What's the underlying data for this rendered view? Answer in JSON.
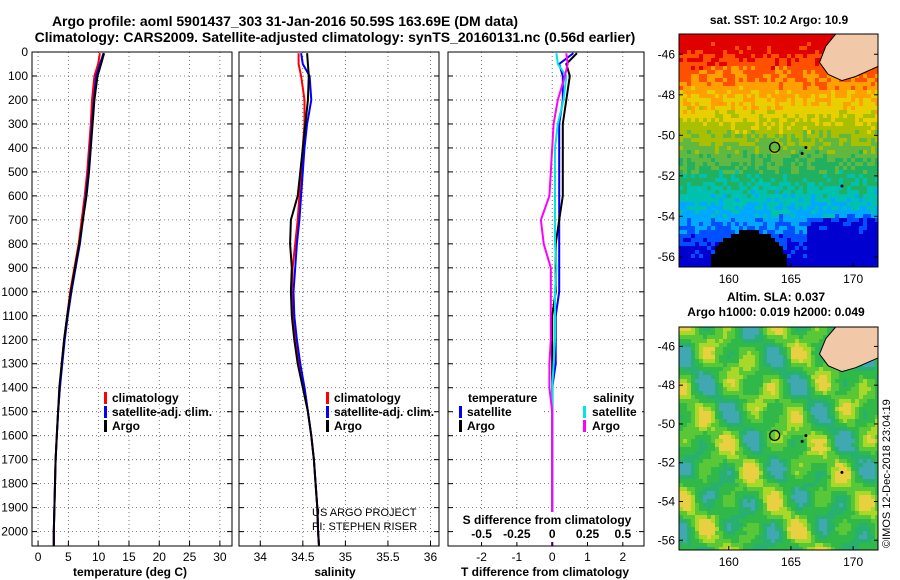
{
  "header": {
    "title_line1": "Argo profile: aoml 5901437_303 31-Jan-2016 50.59S 163.69E (DM data)",
    "title_line2": "Climatology: CARS2009. Satellite-adjusted climatology: synTS_20160131.nc (0.56d earlier)"
  },
  "credits": {
    "project": "US ARGO PROJECT",
    "pi": "PI: STEPHEN RISER",
    "imos": "©IMOS 12-Dec-2018 23:04:19"
  },
  "colors": {
    "climatology": "#ff0000",
    "satellite": "#0000ff",
    "argo": "#000000",
    "salinity_satellite": "#00e5e5",
    "salinity_climatology": "#ff00ff",
    "land": "#f2c9a8"
  },
  "chart_data": [
    {
      "type": "line",
      "id": "temperature",
      "xlabel": "temperature (deg C)",
      "ylabel": "",
      "xlim": [
        -1,
        32
      ],
      "ylim": [
        2060,
        0
      ],
      "xticks": [
        0,
        5,
        10,
        15,
        20,
        25,
        30
      ],
      "yticks": [
        0,
        100,
        200,
        300,
        400,
        500,
        600,
        700,
        800,
        900,
        1000,
        1100,
        1200,
        1300,
        1400,
        1500,
        1600,
        1700,
        1800,
        1900,
        2000
      ],
      "grid": true,
      "legend": [
        "climatology",
        "satellite-adj. clim.",
        "Argo"
      ],
      "y": [
        5,
        50,
        100,
        200,
        300,
        400,
        500,
        600,
        700,
        800,
        900,
        1000,
        1100,
        1200,
        1300,
        1400,
        1500,
        1600,
        1700,
        1800,
        1900,
        2000,
        2060
      ],
      "series": [
        {
          "name": "climatology",
          "values": [
            10.2,
            9.9,
            9.3,
            8.9,
            8.7,
            8.4,
            8.1,
            7.7,
            7.2,
            6.7,
            6.0,
            5.3,
            4.8,
            4.3,
            3.9,
            3.6,
            3.3,
            3.1,
            2.9,
            2.8,
            2.7,
            2.6,
            2.6
          ]
        },
        {
          "name": "satellite-adj. clim.",
          "values": [
            10.8,
            10.2,
            9.6,
            9.2,
            8.9,
            8.6,
            8.3,
            7.9,
            7.4,
            6.9,
            6.2,
            5.5,
            4.9,
            4.4,
            4.0,
            3.6,
            3.3,
            3.1,
            2.9,
            2.8,
            2.7,
            2.6,
            2.6
          ]
        },
        {
          "name": "Argo",
          "values": [
            10.9,
            10.4,
            9.8,
            9.3,
            9.0,
            8.7,
            8.4,
            8.0,
            7.4,
            6.8,
            6.1,
            5.4,
            4.8,
            4.3,
            3.9,
            3.5,
            3.3,
            3.1,
            2.9,
            2.8,
            2.7,
            2.6,
            2.6
          ]
        }
      ]
    },
    {
      "type": "line",
      "id": "salinity",
      "xlabel": "salinity",
      "ylabel": "",
      "xlim": [
        33.75,
        36.1
      ],
      "ylim": [
        2060,
        0
      ],
      "xticks": [
        34,
        34.5,
        35,
        35.5,
        36
      ],
      "grid": true,
      "legend": [
        "climatology",
        "satellite-adj. clim.",
        "Argo"
      ],
      "y": [
        5,
        50,
        100,
        200,
        300,
        400,
        500,
        600,
        700,
        800,
        900,
        1000,
        1100,
        1200,
        1300,
        1400,
        1500,
        1600,
        1700,
        1800,
        1900,
        2000,
        2060
      ],
      "series": [
        {
          "name": "climatology",
          "values": [
            34.45,
            34.45,
            34.48,
            34.52,
            34.52,
            34.5,
            34.48,
            34.46,
            34.44,
            34.41,
            34.38,
            34.37,
            34.38,
            34.41,
            34.46,
            34.52,
            34.56,
            34.6,
            34.63,
            34.65,
            34.67,
            34.68,
            34.69
          ]
        },
        {
          "name": "satellite-adj. clim.",
          "values": [
            34.48,
            34.5,
            34.58,
            34.6,
            34.55,
            34.52,
            34.5,
            34.48,
            34.46,
            34.43,
            34.41,
            34.39,
            34.4,
            34.43,
            34.47,
            34.52,
            34.56,
            34.6,
            34.63,
            34.65,
            34.67,
            34.68,
            34.69
          ]
        },
        {
          "name": "Argo",
          "values": [
            34.55,
            34.56,
            34.57,
            34.56,
            34.53,
            34.5,
            34.47,
            34.44,
            34.36,
            34.35,
            34.37,
            34.36,
            34.37,
            34.4,
            34.44,
            34.5,
            34.56,
            34.6,
            34.63,
            34.65,
            34.67,
            34.68,
            34.69
          ]
        }
      ]
    },
    {
      "type": "line",
      "id": "difference",
      "xlabel": "T difference from climatology",
      "xlabel_top": "S difference from climatology",
      "xlim": [
        -2.95,
        2.6
      ],
      "ylim": [
        2060,
        0
      ],
      "xticks": [
        -2,
        -1,
        0,
        1,
        2
      ],
      "xticklabels_salinity": [
        "-0.5",
        "-0.25",
        "0",
        "0.25",
        "0.5"
      ],
      "grid": true,
      "legend_temperature_title": "temperature",
      "legend_salinity_title": "salinity",
      "legend_temperature": [
        "satellite",
        "Argo"
      ],
      "legend_salinity": [
        "satellite",
        "Argo"
      ],
      "y": [
        5,
        50,
        100,
        200,
        300,
        400,
        500,
        600,
        700,
        800,
        900,
        1000,
        1100,
        1200,
        1300,
        1400,
        1500,
        1600,
        1700,
        1800,
        1900,
        2000,
        2060
      ],
      "series": [
        {
          "name": "temperature satellite",
          "values": [
            0.6,
            0.2,
            0.3,
            0.3,
            0.2,
            0.2,
            0.2,
            0.2,
            0.2,
            0.2,
            0.2,
            0.2,
            0.1,
            0.1,
            0.1,
            0.0,
            0.0,
            0.0,
            0.0,
            0.0,
            0.0,
            0.0,
            0.0
          ]
        },
        {
          "name": "temperature Argo",
          "values": [
            0.7,
            0.4,
            0.5,
            0.4,
            0.3,
            0.3,
            0.3,
            0.3,
            0.2,
            0.1,
            0.1,
            0.1,
            0.0,
            0.0,
            0.0,
            0.0,
            0.0,
            0.0,
            0.0,
            0.0,
            0.0,
            0.0,
            0.0
          ]
        },
        {
          "name": "salinity satellite",
          "values": [
            0.03,
            0.04,
            0.1,
            0.08,
            0.04,
            0.02,
            0.02,
            0.02,
            0.02,
            0.02,
            0.03,
            0.02,
            0.02,
            0.02,
            0.01,
            0.0,
            0.0,
            0.0,
            0.0,
            0.0,
            0.0,
            0.0,
            0.0
          ]
        },
        {
          "name": "salinity Argo",
          "values": [
            0.1,
            0.11,
            0.09,
            0.04,
            0.01,
            0.0,
            -0.01,
            -0.02,
            -0.08,
            -0.06,
            -0.01,
            -0.01,
            -0.01,
            -0.01,
            -0.02,
            -0.02,
            0.0,
            0.0,
            0.0,
            0.0,
            0.0,
            0.0,
            0.0
          ]
        }
      ]
    },
    {
      "type": "heatmap",
      "id": "sst-map",
      "title": "sat. SST: 10.2 Argo: 10.9",
      "xlim": [
        156,
        172
      ],
      "ylim": [
        -56.5,
        -45
      ],
      "xticks": [
        160,
        165,
        170
      ],
      "yticks": [
        -46,
        -48,
        -50,
        -52,
        -54,
        -56
      ],
      "float_position": {
        "lon": 163.69,
        "lat": -50.59
      }
    },
    {
      "type": "heatmap",
      "id": "sla-map",
      "title": "Altim. SLA: 0.037",
      "subtitle": "Argo h1000: 0.019 h2000: 0.049",
      "xlim": [
        156,
        172
      ],
      "ylim": [
        -56.5,
        -45
      ],
      "xticks": [
        160,
        165,
        170
      ],
      "yticks": [
        -46,
        -48,
        -50,
        -52,
        -54,
        -56
      ],
      "float_position": {
        "lon": 163.69,
        "lat": -50.59
      }
    }
  ]
}
